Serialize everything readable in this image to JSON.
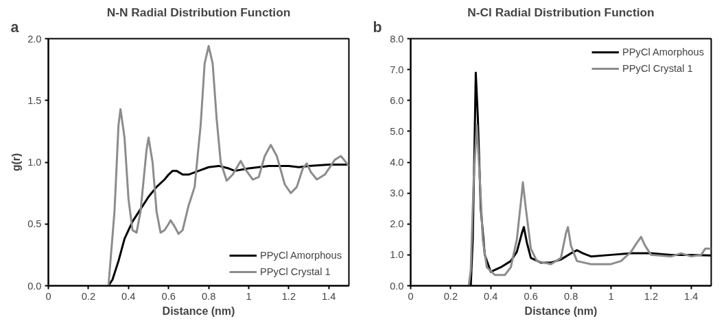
{
  "chart_data": [
    {
      "type": "line",
      "title": "N-N Radial Distribution Function",
      "xlabel": "Distance (nm)",
      "ylabel": "g(r)",
      "annotations": [
        "a"
      ],
      "xlim": [
        0,
        1.5
      ],
      "ylim": [
        0,
        2.0
      ],
      "xticks": [
        0,
        0.2,
        0.4,
        0.6,
        0.8,
        1,
        1.2,
        1.4
      ],
      "yticks": [
        {
          "value": 0,
          "label": "0.0"
        },
        {
          "value": 0.5,
          "label": "0.5"
        },
        {
          "value": 1.0,
          "label": "1.0"
        },
        {
          "value": 1.5,
          "label": "1.5"
        },
        {
          "value": 2.0,
          "label": "2.0"
        }
      ],
      "grid": false,
      "legend": "bottom right",
      "line_style": "solid",
      "marker": "none",
      "series": [
        {
          "name": "PPyCl Amorphous",
          "color": "#000000",
          "x": [
            0,
            0.3,
            0.32,
            0.35,
            0.38,
            0.42,
            0.46,
            0.5,
            0.54,
            0.58,
            0.6,
            0.62,
            0.64,
            0.67,
            0.7,
            0.75,
            0.8,
            0.85,
            0.9,
            0.93,
            1.0,
            1.05,
            1.1,
            1.2,
            1.25,
            1.3,
            1.4,
            1.5
          ],
          "values": [
            0,
            0,
            0.05,
            0.2,
            0.38,
            0.52,
            0.62,
            0.72,
            0.8,
            0.86,
            0.9,
            0.93,
            0.93,
            0.9,
            0.9,
            0.93,
            0.96,
            0.97,
            0.95,
            0.93,
            0.95,
            0.96,
            0.97,
            0.97,
            0.96,
            0.97,
            0.98,
            0.98
          ]
        },
        {
          "name": "PPyCl Crystal 1",
          "color": "#8c8c8c",
          "x": [
            0,
            0.3,
            0.33,
            0.35,
            0.36,
            0.38,
            0.4,
            0.42,
            0.44,
            0.46,
            0.49,
            0.5,
            0.52,
            0.54,
            0.56,
            0.58,
            0.6,
            0.61,
            0.63,
            0.65,
            0.67,
            0.7,
            0.73,
            0.76,
            0.78,
            0.8,
            0.82,
            0.84,
            0.86,
            0.89,
            0.92,
            0.96,
            0.98,
            1.02,
            1.05,
            1.08,
            1.11,
            1.14,
            1.18,
            1.21,
            1.24,
            1.27,
            1.29,
            1.31,
            1.34,
            1.38,
            1.43,
            1.46,
            1.5
          ],
          "values": [
            0,
            0,
            0.6,
            1.3,
            1.43,
            1.2,
            0.7,
            0.45,
            0.43,
            0.6,
            1.1,
            1.2,
            1.0,
            0.6,
            0.43,
            0.45,
            0.5,
            0.53,
            0.48,
            0.42,
            0.45,
            0.65,
            0.8,
            1.3,
            1.8,
            1.94,
            1.8,
            1.35,
            1.0,
            0.85,
            0.9,
            1.01,
            0.95,
            0.86,
            0.88,
            1.05,
            1.14,
            1.05,
            0.82,
            0.75,
            0.8,
            0.95,
            0.99,
            0.92,
            0.86,
            0.9,
            1.02,
            1.05,
            0.97
          ]
        }
      ]
    },
    {
      "type": "line",
      "title": "N-Cl Radial Distribution Function",
      "xlabel": "Distance (nm)",
      "annotations": [
        "b"
      ],
      "xlim": [
        0,
        1.5
      ],
      "ylim": [
        0,
        8.0
      ],
      "xticks": [
        0,
        0.2,
        0.4,
        0.6,
        0.8,
        1,
        1.2,
        1.4
      ],
      "yticks": [
        {
          "value": 0,
          "label": "0.0"
        },
        {
          "value": 1,
          "label": "1.0"
        },
        {
          "value": 2,
          "label": "2.0"
        },
        {
          "value": 3,
          "label": "3.0"
        },
        {
          "value": 4,
          "label": "4.0"
        },
        {
          "value": 5,
          "label": "5.0"
        },
        {
          "value": 6,
          "label": "6.0"
        },
        {
          "value": 7,
          "label": "7.0"
        },
        {
          "value": 8,
          "label": "8.0"
        }
      ],
      "grid": false,
      "legend": "top right",
      "line_style": "solid",
      "marker": "none",
      "series": [
        {
          "name": "PPyCl Amorphous",
          "color": "#000000",
          "x": [
            0,
            0.3,
            0.31,
            0.32,
            0.325,
            0.335,
            0.35,
            0.37,
            0.4,
            0.45,
            0.5,
            0.53,
            0.555,
            0.565,
            0.58,
            0.6,
            0.65,
            0.7,
            0.75,
            0.8,
            0.83,
            0.86,
            0.9,
            1.0,
            1.1,
            1.2,
            1.3,
            1.4,
            1.5
          ],
          "values": [
            0,
            0,
            1.5,
            5,
            6.9,
            5.5,
            2.5,
            1.0,
            0.45,
            0.6,
            0.8,
            1.1,
            1.7,
            1.9,
            1.4,
            0.9,
            0.75,
            0.75,
            0.85,
            1.05,
            1.15,
            1.05,
            0.95,
            1.0,
            1.05,
            1.05,
            1.0,
            1.0,
            0.98
          ]
        },
        {
          "name": "PPyCl Crystal 1",
          "color": "#8c8c8c",
          "x": [
            0,
            0.29,
            0.3,
            0.315,
            0.33,
            0.345,
            0.36,
            0.38,
            0.42,
            0.47,
            0.5,
            0.53,
            0.555,
            0.56,
            0.575,
            0.6,
            0.63,
            0.7,
            0.75,
            0.775,
            0.785,
            0.8,
            0.83,
            0.9,
            1.0,
            1.05,
            1.1,
            1.13,
            1.15,
            1.17,
            1.2,
            1.3,
            1.35,
            1.4,
            1.45,
            1.47,
            1.5
          ],
          "values": [
            0,
            0,
            0.5,
            3.5,
            5.2,
            3.5,
            1.5,
            0.6,
            0.35,
            0.35,
            0.6,
            1.5,
            3.0,
            3.35,
            2.5,
            1.2,
            0.8,
            0.7,
            0.9,
            1.7,
            1.9,
            1.3,
            0.8,
            0.7,
            0.7,
            0.8,
            1.1,
            1.4,
            1.58,
            1.3,
            1.0,
            0.95,
            1.05,
            0.95,
            1.0,
            1.2,
            1.2
          ]
        }
      ]
    }
  ]
}
